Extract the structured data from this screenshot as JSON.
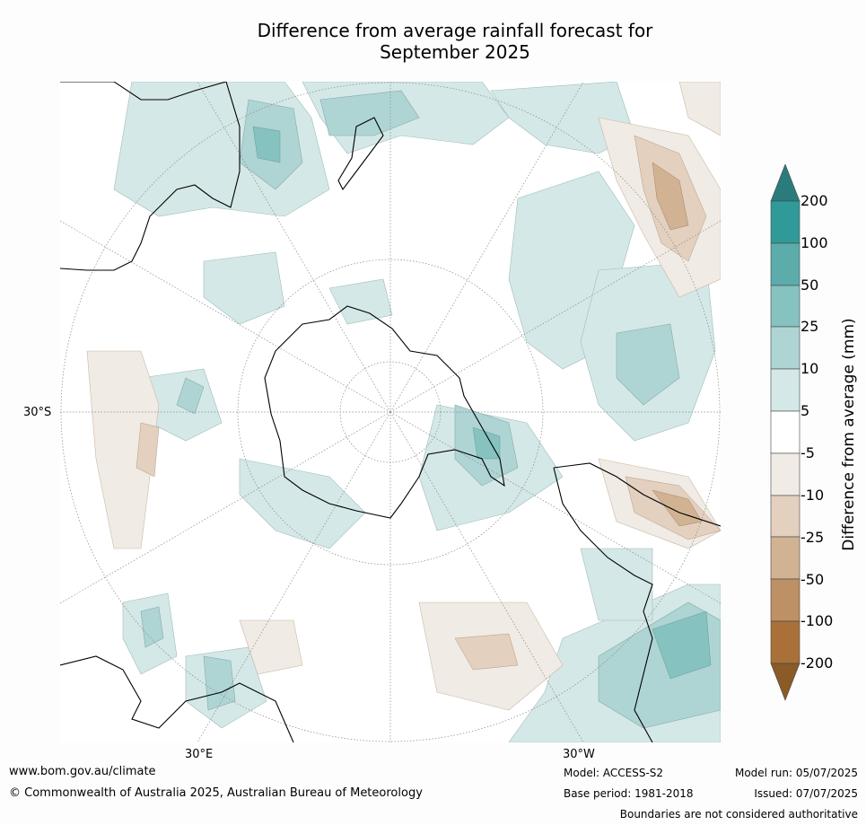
{
  "title": {
    "line1": "Difference from average rainfall forecast for",
    "line2": "September 2025"
  },
  "map": {
    "latitude_label": "30°S",
    "longitude_labels": {
      "left": "30°E",
      "right": "30°W"
    },
    "projection": "south-polar stereographic",
    "landmasses": [
      "Antarctica",
      "Australia",
      "New Zealand",
      "South America",
      "Africa"
    ]
  },
  "colorbar": {
    "label": "Difference from average (mm)",
    "ticks": [
      "200",
      "100",
      "50",
      "25",
      "10",
      "5",
      "-5",
      "-10",
      "-25",
      "-50",
      "-100",
      "-200"
    ],
    "colors": {
      "over": "#2a7c7c",
      "wet": [
        "#2f9a97",
        "#5bacab",
        "#86c2bf",
        "#aed5d4",
        "#d4e8e7"
      ],
      "neutral": "#ffffff",
      "dry": [
        "#f0ebe4",
        "#e3d0bf",
        "#d1b393",
        "#bd9065",
        "#a97139"
      ],
      "under": "#8a5a27"
    }
  },
  "footer": {
    "url": "www.bom.gov.au/climate",
    "copyright": "© Commonwealth of Australia 2025, Australian Bureau of Meteorology",
    "model": "Model: ACCESS-S2",
    "base_period": "Base period: 1981-2018",
    "model_run": "Model run: 05/07/2025",
    "issued": "Issued: 07/07/2025",
    "disclaimer": "Boundaries are not considered authoritative"
  }
}
